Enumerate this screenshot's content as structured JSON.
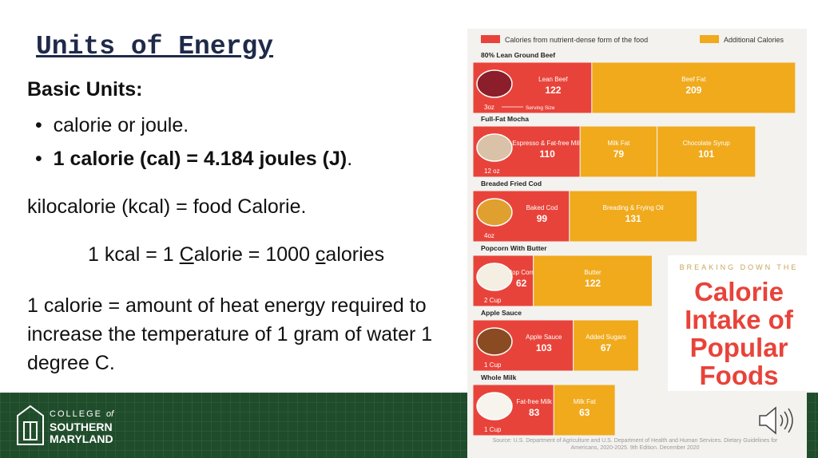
{
  "slide": {
    "title": "Units of Energy",
    "subtitle": "Basic Units:",
    "bullets": [
      {
        "parts": [
          "calorie or joule."
        ]
      },
      {
        "parts": [
          "1 calorie (cal) = 4.184 joules (J)",
          "."
        ]
      }
    ],
    "line1": "kilocalorie (kcal) = food Calorie.",
    "equation": [
      "1 kcal = 1 ",
      "C",
      "alorie = 1000 ",
      "c",
      "alories"
    ],
    "definition": "1 calorie = amount of heat energy required to increase the temperature of 1 gram of water 1 degree C.",
    "logo": {
      "line1": "COLLEGE",
      "of": "of",
      "line2": "SOUTHERN",
      "line3": "MARYLAND"
    }
  },
  "infographic": {
    "legend": [
      {
        "name": "Calories from nutrient-dense form of the food",
        "color": "#e8433a"
      },
      {
        "name": "Additional Calories",
        "color": "#f0aa1c"
      }
    ],
    "foods": [
      {
        "name": "80% Lean Ground Beef",
        "serving": "3oz",
        "note": "Serving Size",
        "segments": [
          {
            "label": "Lean Beef",
            "value": 122,
            "color": "#e8433a"
          },
          {
            "label": "Beef Fat",
            "value": 209,
            "color": "#f0aa1c"
          }
        ]
      },
      {
        "name": "Full-Fat Mocha",
        "serving": "12 oz",
        "segments": [
          {
            "label": "Espresso & Fat-free Milk",
            "value": 110,
            "color": "#e8433a"
          },
          {
            "label": "Milk Fat",
            "value": 79,
            "color": "#f0aa1c"
          },
          {
            "label": "Chocolate Syrup",
            "value": 101,
            "color": "#f0aa1c"
          }
        ]
      },
      {
        "name": "Breaded Fried Cod",
        "serving": "4oz",
        "segments": [
          {
            "label": "Baked Cod",
            "value": 99,
            "color": "#e8433a"
          },
          {
            "label": "Breading & Frying Oil",
            "value": 131,
            "color": "#f0aa1c"
          }
        ]
      },
      {
        "name": "Popcorn With Butter",
        "serving": "2 Cup",
        "segments": [
          {
            "label": "Pop Corn",
            "value": 62,
            "color": "#e8433a"
          },
          {
            "label": "Butter",
            "value": 122,
            "color": "#f0aa1c"
          }
        ]
      },
      {
        "name": "Apple Sauce",
        "serving": "1 Cup",
        "segments": [
          {
            "label": "Apple Sauce",
            "value": 103,
            "color": "#e8433a"
          },
          {
            "label": "Added Sugars",
            "value": 67,
            "color": "#f0aa1c"
          }
        ]
      },
      {
        "name": "Whole Milk",
        "serving": "1 Cup",
        "segments": [
          {
            "label": "Fat-free Milk",
            "value": 83,
            "color": "#e8433a"
          },
          {
            "label": "Milk Fat",
            "value": 63,
            "color": "#f0aa1c"
          }
        ]
      }
    ],
    "kicker": "BREAKING DOWN THE",
    "headline": "Calorie Intake of Popular Foods",
    "source": "Source: U.S. Department of Agriculture and U.S. Department of Health and Human Services. Dietary Guidelines for Americans, 2020-2025. 9th Edition. December 2020"
  }
}
